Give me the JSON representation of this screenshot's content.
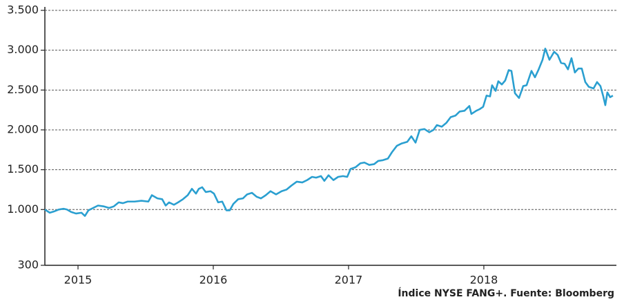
{
  "chart_data": {
    "type": "line",
    "source": "Índice NYSE FANG+. Fuente: Bloomberg",
    "x": [
      2014.755,
      2014.791,
      2014.821,
      2014.857,
      2014.893,
      2014.918,
      2014.949,
      2014.985,
      2015.026,
      2015.051,
      2015.077,
      2015.112,
      2015.148,
      2015.189,
      2015.23,
      2015.265,
      2015.301,
      2015.332,
      2015.367,
      2015.418,
      2015.469,
      2015.52,
      2015.546,
      2015.587,
      2015.622,
      2015.648,
      2015.673,
      2015.709,
      2015.74,
      2015.776,
      2015.811,
      2015.842,
      2015.872,
      2015.893,
      2015.918,
      2015.944,
      2015.98,
      2016.005,
      2016.036,
      2016.066,
      2016.097,
      2016.122,
      2016.148,
      2016.184,
      2016.219,
      2016.25,
      2016.286,
      2016.321,
      2016.352,
      2016.388,
      2016.423,
      2016.464,
      2016.505,
      2016.541,
      2016.577,
      2016.617,
      2016.658,
      2016.694,
      2016.73,
      2016.76,
      2016.796,
      2016.821,
      2016.852,
      2016.888,
      2016.923,
      2016.959,
      2016.99,
      2017.015,
      2017.051,
      2017.087,
      2017.117,
      2017.153,
      2017.189,
      2017.219,
      2017.255,
      2017.291,
      2017.321,
      2017.357,
      2017.393,
      2017.434,
      2017.464,
      2017.495,
      2017.526,
      2017.561,
      2017.597,
      2017.628,
      2017.653,
      2017.689,
      2017.724,
      2017.755,
      2017.791,
      2017.821,
      2017.857,
      2017.893,
      2017.908,
      2017.944,
      2017.969,
      2017.995,
      2018.02,
      2018.046,
      2018.061,
      2018.087,
      2018.107,
      2018.133,
      2018.158,
      2018.184,
      2018.204,
      2018.23,
      2018.26,
      2018.291,
      2018.316,
      2018.352,
      2018.378,
      2018.403,
      2018.434,
      2018.454,
      2018.485,
      2018.52,
      2018.546,
      2018.571,
      2018.597,
      2018.622,
      2018.648,
      2018.673,
      2018.699,
      2018.724,
      2018.75,
      2018.776,
      2018.811,
      2018.837,
      2018.862,
      2018.883,
      2018.898,
      2018.913,
      2018.934,
      2018.954
    ],
    "values": [
      1000,
      960,
      975,
      1000,
      1010,
      1000,
      970,
      950,
      960,
      920,
      990,
      1020,
      1050,
      1040,
      1020,
      1040,
      1090,
      1080,
      1100,
      1100,
      1110,
      1100,
      1180,
      1140,
      1130,
      1050,
      1090,
      1060,
      1090,
      1130,
      1180,
      1260,
      1200,
      1260,
      1280,
      1220,
      1230,
      1200,
      1090,
      1100,
      990,
      990,
      1070,
      1130,
      1140,
      1190,
      1210,
      1160,
      1140,
      1180,
      1230,
      1190,
      1230,
      1250,
      1300,
      1350,
      1340,
      1370,
      1410,
      1400,
      1420,
      1360,
      1430,
      1370,
      1410,
      1420,
      1410,
      1510,
      1530,
      1580,
      1590,
      1560,
      1570,
      1610,
      1620,
      1640,
      1720,
      1800,
      1830,
      1850,
      1920,
      1840,
      2000,
      2010,
      1970,
      2000,
      2060,
      2040,
      2090,
      2160,
      2180,
      2230,
      2240,
      2300,
      2200,
      2240,
      2260,
      2290,
      2430,
      2420,
      2560,
      2490,
      2610,
      2570,
      2620,
      2750,
      2740,
      2460,
      2400,
      2550,
      2560,
      2740,
      2660,
      2750,
      2880,
      3020,
      2880,
      2980,
      2940,
      2840,
      2830,
      2760,
      2900,
      2720,
      2770,
      2770,
      2600,
      2540,
      2520,
      2600,
      2550,
      2420,
      2310,
      2470,
      2410,
      2430
    ],
    "color": "#2a9fd0",
    "xlim": [
      2014.755,
      2018.98
    ],
    "xticks": [
      2015,
      2016,
      2017,
      2018
    ],
    "ylim": [
      300,
      3500
    ],
    "yticks": [
      300,
      {
        "value": 1000,
        "label": "1.000"
      },
      {
        "value": 1500,
        "label": "1.500"
      },
      {
        "value": 2000,
        "label": "2.000"
      },
      {
        "value": 2500,
        "label": "2.500"
      },
      {
        "value": 3000,
        "label": "3.000"
      },
      {
        "value": 3500,
        "label": "3.500"
      }
    ],
    "grid": true
  }
}
